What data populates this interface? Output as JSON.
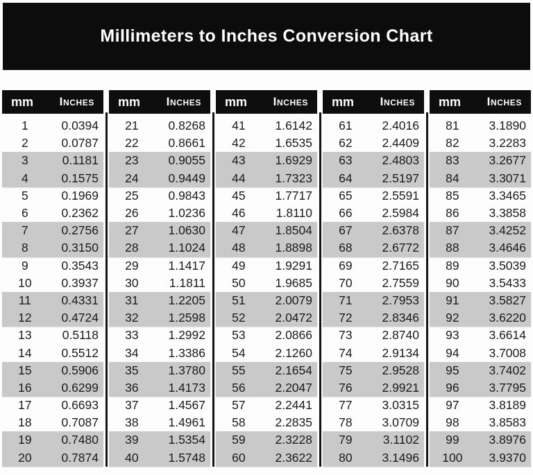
{
  "title": "Millimeters to Inches Conversion Chart",
  "colors": {
    "banner_bg": "#0c0c0c",
    "header_bg": "#0e0e0e",
    "stripe_gray": "#c9c9c9",
    "text": "#1b1b1b",
    "divider": "#141414"
  },
  "chart_data": {
    "type": "table",
    "title": "Millimeters to Inches Conversion Chart",
    "column_headers": [
      "mm",
      "Inches"
    ],
    "layout": "5 side-by-side column groups of 20 rows; alternating pairs of rows shaded gray; black vertical dividers between groups",
    "columns": [
      {
        "rows": [
          [
            "1",
            "0.0394"
          ],
          [
            "2",
            "0.0787"
          ],
          [
            "3",
            "0.1181"
          ],
          [
            "4",
            "0.1575"
          ],
          [
            "5",
            "0.1969"
          ],
          [
            "6",
            "0.2362"
          ],
          [
            "7",
            "0.2756"
          ],
          [
            "8",
            "0.3150"
          ],
          [
            "9",
            "0.3543"
          ],
          [
            "10",
            "0.3937"
          ],
          [
            "11",
            "0.4331"
          ],
          [
            "12",
            "0.4724"
          ],
          [
            "13",
            "0.5118"
          ],
          [
            "14",
            "0.5512"
          ],
          [
            "15",
            "0.5906"
          ],
          [
            "16",
            "0.6299"
          ],
          [
            "17",
            "0.6693"
          ],
          [
            "18",
            "0.7087"
          ],
          [
            "19",
            "0.7480"
          ],
          [
            "20",
            "0.7874"
          ]
        ]
      },
      {
        "rows": [
          [
            "21",
            "0.8268"
          ],
          [
            "22",
            "0.8661"
          ],
          [
            "23",
            "0.9055"
          ],
          [
            "24",
            "0.9449"
          ],
          [
            "25",
            "0.9843"
          ],
          [
            "26",
            "1.0236"
          ],
          [
            "27",
            "1.0630"
          ],
          [
            "28",
            "1.1024"
          ],
          [
            "29",
            "1.1417"
          ],
          [
            "30",
            "1.1811"
          ],
          [
            "31",
            "1.2205"
          ],
          [
            "32",
            "1.2598"
          ],
          [
            "33",
            "1.2992"
          ],
          [
            "34",
            "1.3386"
          ],
          [
            "35",
            "1.3780"
          ],
          [
            "36",
            "1.4173"
          ],
          [
            "37",
            "1.4567"
          ],
          [
            "38",
            "1.4961"
          ],
          [
            "39",
            "1.5354"
          ],
          [
            "40",
            "1.5748"
          ]
        ]
      },
      {
        "rows": [
          [
            "41",
            "1.6142"
          ],
          [
            "42",
            "1.6535"
          ],
          [
            "43",
            "1.6929"
          ],
          [
            "44",
            "1.7323"
          ],
          [
            "45",
            "1.7717"
          ],
          [
            "46",
            "1.8110"
          ],
          [
            "47",
            "1.8504"
          ],
          [
            "48",
            "1.8898"
          ],
          [
            "49",
            "1.9291"
          ],
          [
            "50",
            "1.9685"
          ],
          [
            "51",
            "2.0079"
          ],
          [
            "52",
            "2.0472"
          ],
          [
            "53",
            "2.0866"
          ],
          [
            "54",
            "2.1260"
          ],
          [
            "55",
            "2.1654"
          ],
          [
            "56",
            "2.2047"
          ],
          [
            "57",
            "2.2441"
          ],
          [
            "58",
            "2.2835"
          ],
          [
            "59",
            "2.3228"
          ],
          [
            "60",
            "2.3622"
          ]
        ]
      },
      {
        "rows": [
          [
            "61",
            "2.4016"
          ],
          [
            "62",
            "2.4409"
          ],
          [
            "63",
            "2.4803"
          ],
          [
            "64",
            "2.5197"
          ],
          [
            "65",
            "2.5591"
          ],
          [
            "66",
            "2.5984"
          ],
          [
            "67",
            "2.6378"
          ],
          [
            "68",
            "2.6772"
          ],
          [
            "69",
            "2.7165"
          ],
          [
            "70",
            "2.7559"
          ],
          [
            "71",
            "2.7953"
          ],
          [
            "72",
            "2.8346"
          ],
          [
            "73",
            "2.8740"
          ],
          [
            "74",
            "2.9134"
          ],
          [
            "75",
            "2.9528"
          ],
          [
            "76",
            "2.9921"
          ],
          [
            "77",
            "3.0315"
          ],
          [
            "78",
            "3.0709"
          ],
          [
            "79",
            "3.1102"
          ],
          [
            "80",
            "3.1496"
          ]
        ]
      },
      {
        "rows": [
          [
            "81",
            "3.1890"
          ],
          [
            "82",
            "3.2283"
          ],
          [
            "83",
            "3.2677"
          ],
          [
            "84",
            "3.3071"
          ],
          [
            "85",
            "3.3465"
          ],
          [
            "86",
            "3.3858"
          ],
          [
            "87",
            "3.4252"
          ],
          [
            "88",
            "3.4646"
          ],
          [
            "89",
            "3.5039"
          ],
          [
            "90",
            "3.5433"
          ],
          [
            "91",
            "3.5827"
          ],
          [
            "92",
            "3.6220"
          ],
          [
            "93",
            "3.6614"
          ],
          [
            "94",
            "3.7008"
          ],
          [
            "95",
            "3.7402"
          ],
          [
            "96",
            "3.7795"
          ],
          [
            "97",
            "3.8189"
          ],
          [
            "98",
            "3.8583"
          ],
          [
            "99",
            "3.8976"
          ],
          [
            "100",
            "3.9370"
          ]
        ]
      }
    ]
  }
}
